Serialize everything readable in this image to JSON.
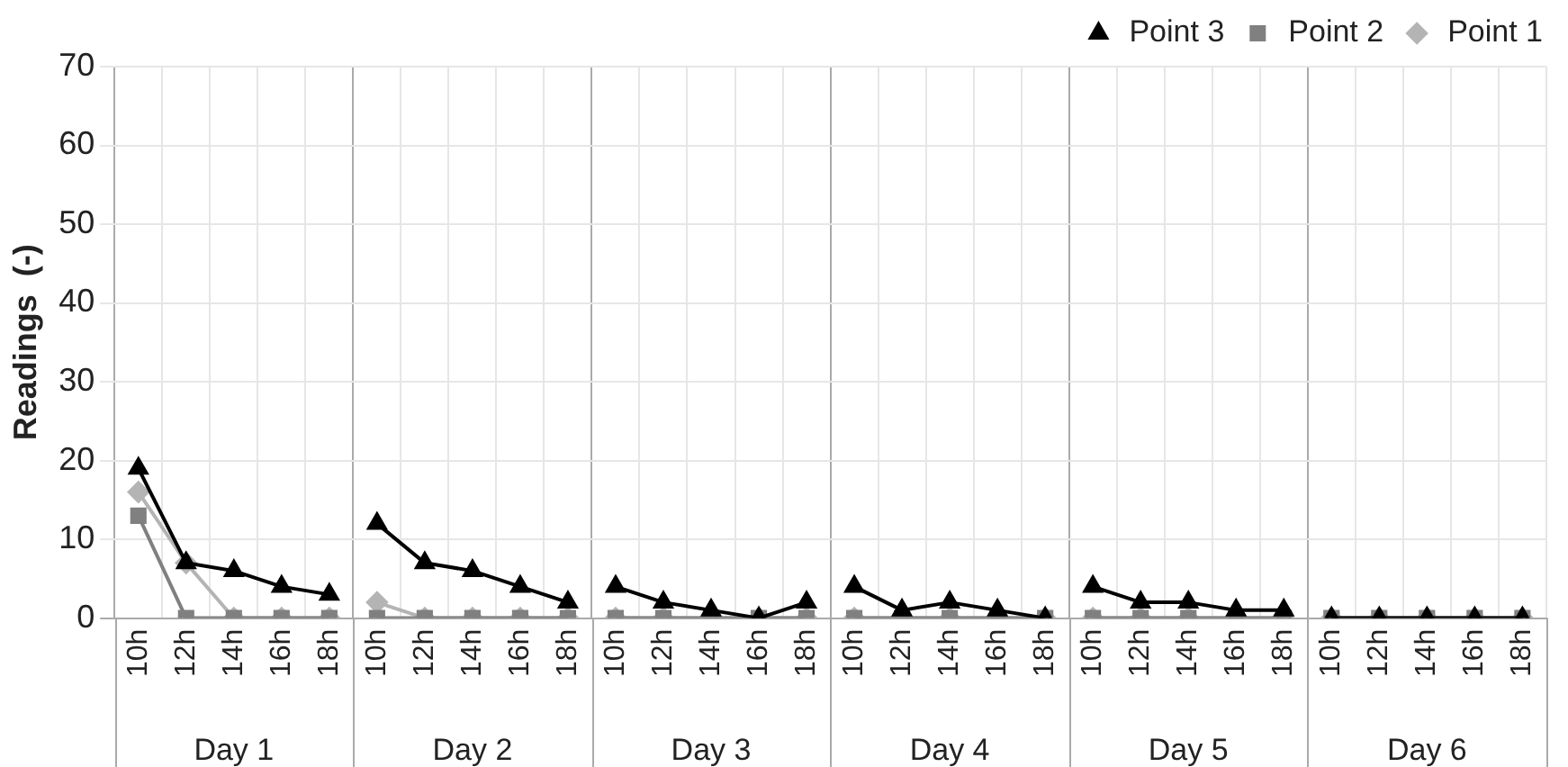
{
  "chart_data": {
    "type": "line",
    "ylabel": "Readings  (-)",
    "categories": [
      "10h",
      "12h",
      "14h",
      "16h",
      "18h",
      "10h",
      "12h",
      "14h",
      "16h",
      "18h",
      "10h",
      "12h",
      "14h",
      "16h",
      "18h",
      "10h",
      "12h",
      "14h",
      "16h",
      "18h",
      "10h",
      "12h",
      "14h",
      "16h",
      "18h",
      "10h",
      "12h",
      "14h",
      "16h",
      "18h"
    ],
    "annotations": [
      "Day 1",
      "Day 2",
      "Day 3",
      "Day 4",
      "Day 5",
      "Day 6"
    ],
    "series": [
      {
        "name": "Point 1",
        "color": "#b4b4b4",
        "marker": "diamond",
        "values": [
          16,
          7,
          0,
          0,
          0,
          2,
          0,
          0,
          0,
          0,
          0,
          0,
          0,
          0,
          0,
          0,
          0,
          0,
          0,
          0,
          0,
          0,
          0,
          0,
          0,
          0,
          0,
          0,
          0,
          0
        ]
      },
      {
        "name": "Point 2",
        "color": "#808080",
        "marker": "square",
        "values": [
          13,
          0,
          0,
          0,
          0,
          0,
          0,
          0,
          0,
          0,
          0,
          0,
          0,
          0,
          0,
          0,
          0,
          0,
          0,
          0,
          0,
          0,
          0,
          0,
          0,
          0,
          0,
          0,
          0,
          0
        ]
      },
      {
        "name": "Point 3",
        "color": "#000000",
        "marker": "triangle",
        "values": [
          19,
          7,
          6,
          4,
          3,
          12,
          7,
          6,
          4,
          2,
          4,
          2,
          1,
          0,
          2,
          4,
          1,
          2,
          1,
          0,
          4,
          2,
          2,
          1,
          1,
          0,
          0,
          0,
          0,
          0
        ]
      }
    ],
    "ylim": [
      0,
      70
    ],
    "yticks": [
      0,
      10,
      20,
      30,
      40,
      50,
      60,
      70
    ],
    "grid": true,
    "legend": "top right"
  }
}
